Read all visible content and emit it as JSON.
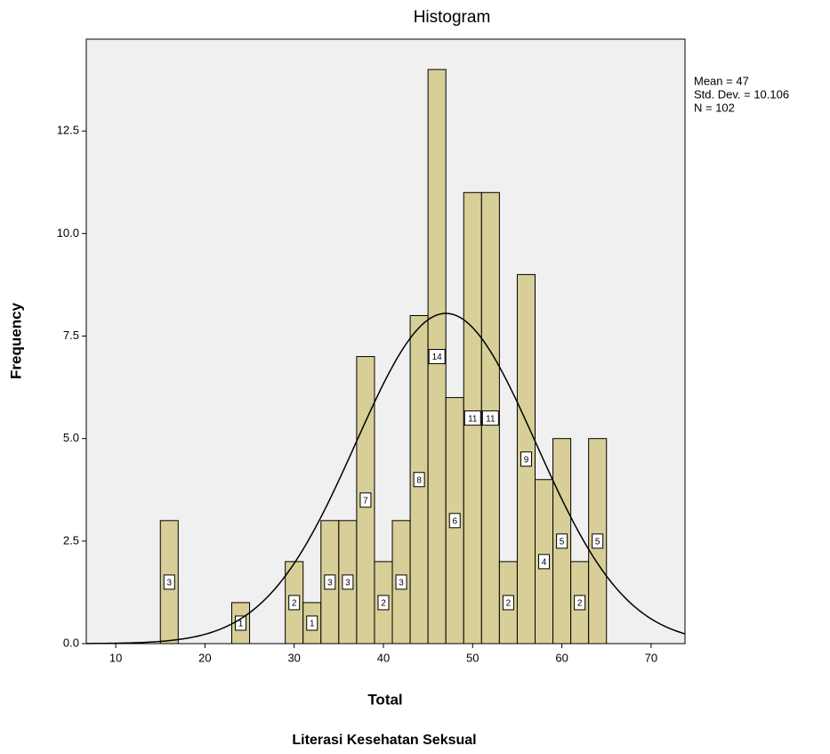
{
  "chart_data": {
    "type": "histogram",
    "title": "Histogram",
    "x_label": "Total",
    "y_label": "Frequency",
    "caption": "Literasi Kesehatan Seksual",
    "bins": [
      15,
      17,
      19,
      21,
      23,
      25,
      27,
      29,
      31,
      33,
      35,
      37,
      39,
      41,
      43,
      45,
      47,
      49,
      51,
      53,
      55,
      57,
      59,
      61,
      63,
      65
    ],
    "values": [
      3,
      0,
      0,
      0,
      1,
      0,
      0,
      2,
      1,
      3,
      3,
      7,
      2,
      3,
      8,
      14,
      6,
      11,
      11,
      2,
      9,
      4,
      5,
      2,
      5
    ],
    "color": "#d7cf97",
    "plot_background": "#f0f0f0",
    "curve_color": "#000000",
    "xlim": [
      6.7,
      73.8
    ],
    "ylim": [
      0,
      14.74
    ],
    "xticks": [
      10,
      20,
      30,
      40,
      50,
      60,
      70
    ],
    "yticks": [
      {
        "value": 0,
        "label": "0.0"
      },
      2.5,
      {
        "value": 5,
        "label": "5.0"
      },
      7.5,
      {
        "value": 10,
        "label": "10.0"
      },
      12.5
    ],
    "stats": {
      "mean": {
        "value": 47,
        "label": "Mean = 47"
      },
      "sd": {
        "value": 10.106,
        "label": "Std. Dev. = 10.106"
      },
      "n": {
        "value": 102,
        "label": "N = 102"
      }
    }
  }
}
